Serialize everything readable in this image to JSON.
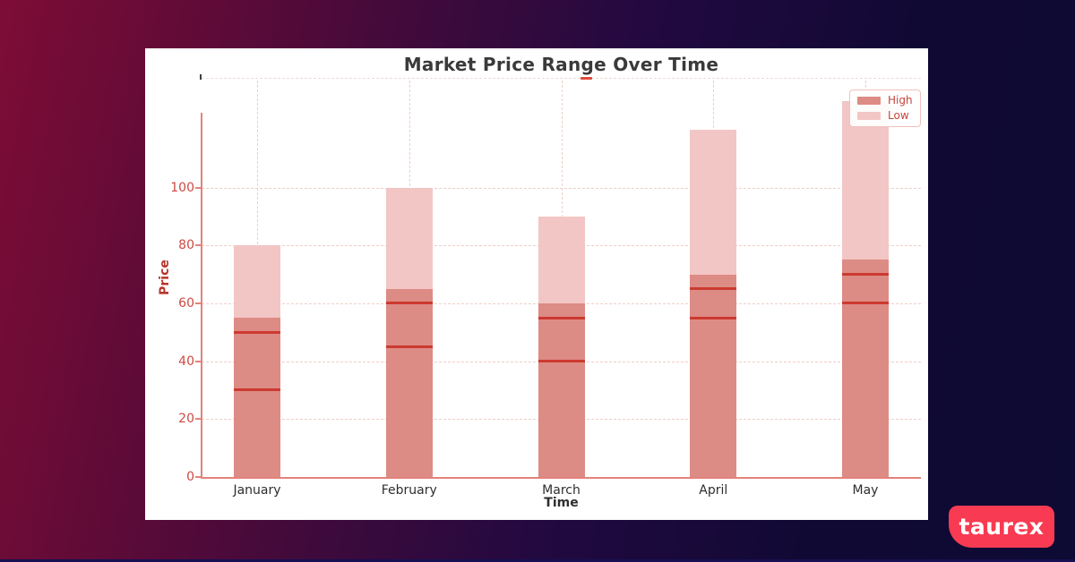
{
  "chart_data": {
    "type": "bar",
    "title": "Market Price Range Over Time",
    "xlabel": "Time",
    "ylabel": "Price",
    "categories": [
      "January",
      "February",
      "March",
      "April",
      "May"
    ],
    "series": [
      {
        "name": "High",
        "color": "#dd8b85",
        "values": [
          55,
          65,
          60,
          70,
          75
        ]
      },
      {
        "name": "Low",
        "color": "#f2c6c4",
        "values": [
          80,
          100,
          90,
          120,
          130
        ]
      }
    ],
    "marker_lines": {
      "color": "#cc3a30",
      "per_category_values": [
        [
          30,
          50
        ],
        [
          45,
          60
        ],
        [
          40,
          55
        ],
        [
          55,
          65
        ],
        [
          60,
          70
        ]
      ]
    },
    "yticks": [
      0,
      20,
      40,
      60,
      80,
      100
    ],
    "ylim": [
      0,
      137
    ],
    "grid": true,
    "legend_position": "upper-right",
    "colors": {
      "axis": "#e3837b",
      "tick_label": "#cd4a42",
      "axis_label": "#b8352a",
      "title": "#3a3a3a",
      "xtick_label": "#2e2e2e",
      "grid": "#f0cdc9"
    }
  },
  "branding": {
    "logo_text": "taurex",
    "logo_bg": "#f83b52"
  }
}
